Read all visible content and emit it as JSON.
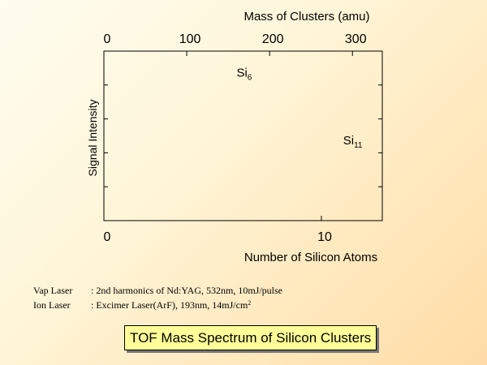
{
  "chart_data": {
    "type": "line",
    "top_axis": {
      "label": "Mass of Clusters (amu)",
      "range": [
        0,
        336
      ],
      "ticks": [
        {
          "value": 0,
          "label": "0"
        },
        {
          "value": 100,
          "label": "100"
        },
        {
          "value": 200,
          "label": "200"
        },
        {
          "value": 300,
          "label": "300"
        }
      ]
    },
    "bottom_axis": {
      "label": "Number of Silicon Atoms",
      "range": [
        0,
        12.8
      ],
      "ticks": [
        {
          "value": 0,
          "label": "0"
        },
        {
          "value": 10,
          "label": "10"
        }
      ]
    },
    "y_axis": {
      "label": "Signal Intensity",
      "range": [
        0,
        5
      ],
      "tick_values": [
        1,
        2,
        3,
        4
      ]
    },
    "annotations": [
      {
        "id": "si6",
        "base": "Si",
        "sub": "6",
        "x": 6.1,
        "y": 4.25
      },
      {
        "id": "si11",
        "base": "Si",
        "sub": "11",
        "x": 11.0,
        "y": 2.25
      }
    ]
  },
  "notes": [
    {
      "label": "Vap Laser",
      "text": ": 2nd harmonics of Nd:YAG, 532nm, 10mJ/pulse",
      "sup": ""
    },
    {
      "label": "Ion Laser",
      "text": ": Excimer Laser(ArF), 193nm, 14mJ/cm",
      "sup": "2"
    }
  ],
  "title": "TOF Mass Spectrum of Silicon Clusters"
}
